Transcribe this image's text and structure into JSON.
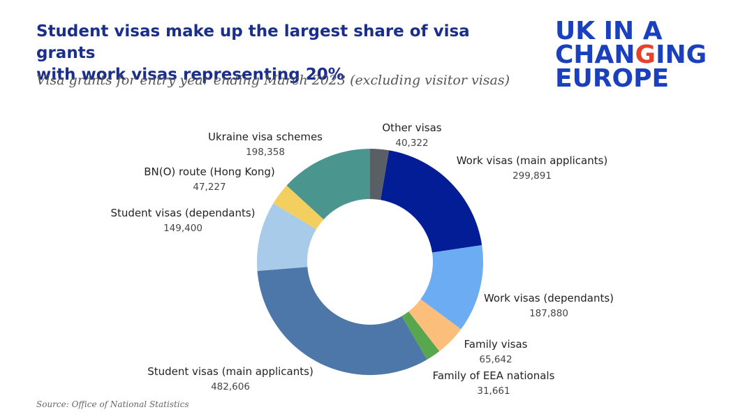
{
  "header": {
    "title_line1": "Student visas make up the largest share of visa grants",
    "title_line2": "with work visas representing 20%",
    "subtitle": "Visa grants for entry year ending March 2023 (excluding visitor visas)"
  },
  "logo": {
    "line1": "UK IN A",
    "line2_pre": "CHAN",
    "line2_accent": "G",
    "line2_post": "ING",
    "line3": "EUROPE",
    "text_color": "#1a3fbf",
    "accent_color": "#e8412b"
  },
  "footer": {
    "source": "Source: Office of National Statistics"
  },
  "chart_data": {
    "type": "donut",
    "unit": "visa grants",
    "slices": [
      {
        "name": "Other visas",
        "value": 40322,
        "value_label": "40,322",
        "color": "#5a5f66"
      },
      {
        "name": "Work visas (main applicants)",
        "value": 299891,
        "value_label": "299,891",
        "color": "#021d96"
      },
      {
        "name": "Work visas (dependants)",
        "value": 187880,
        "value_label": "187,880",
        "color": "#6cacf2"
      },
      {
        "name": "Family visas",
        "value": 65642,
        "value_label": "65,642",
        "color": "#fbbf7b"
      },
      {
        "name": "Family of EEA nationals",
        "value": 31661,
        "value_label": "31,661",
        "color": "#58a74f"
      },
      {
        "name": "Student visas (main applicants)",
        "value": 482606,
        "value_label": "482,606",
        "color": "#4c77a8"
      },
      {
        "name": "Student visas (dependants)",
        "value": 149400,
        "value_label": "149,400",
        "color": "#a7cbe9"
      },
      {
        "name": "BN(O) route (Hong Kong)",
        "value": 47227,
        "value_label": "47,227",
        "color": "#f2cf5f"
      },
      {
        "name": "Ukraine visa schemes",
        "value": 198358,
        "value_label": "198,358",
        "color": "#4a968e"
      }
    ]
  }
}
